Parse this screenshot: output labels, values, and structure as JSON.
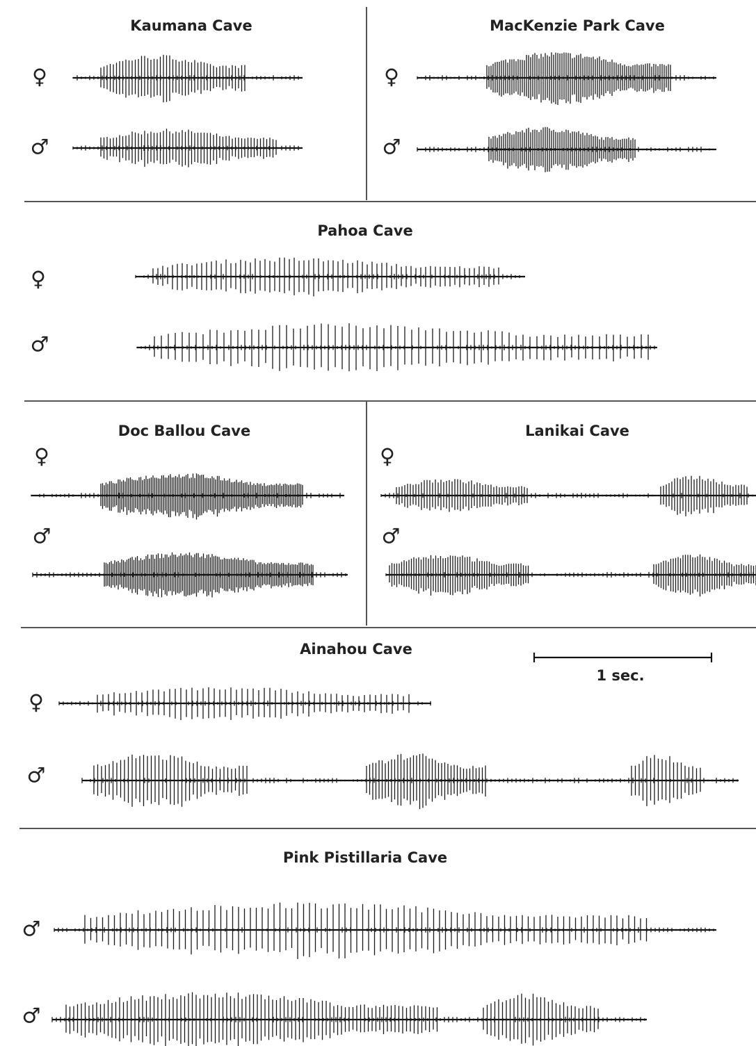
{
  "panels": [
    {
      "title": "Kaumana Cave",
      "symbols": [
        "♀",
        "♂"
      ]
    },
    {
      "title": "MacKenzie Park Cave",
      "symbols": [
        "♀",
        "♂"
      ]
    },
    {
      "title": "Pahoa Cave",
      "symbols": [
        "♀",
        "♂"
      ]
    },
    {
      "title": "Doc Ballou Cave",
      "symbols": [
        "♀",
        "♂"
      ]
    },
    {
      "title": "Lanikai Cave",
      "symbols": [
        "♀",
        "♂"
      ]
    },
    {
      "title": "Ainahou Cave",
      "symbols": [
        "♀",
        "♂"
      ]
    },
    {
      "title": "Pink Pistillaria Cave",
      "symbols": [
        "♂",
        "♂"
      ]
    }
  ],
  "scale_bar": {
    "label": "1 sec."
  }
}
